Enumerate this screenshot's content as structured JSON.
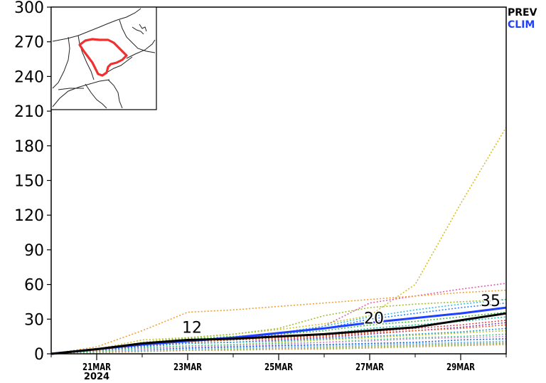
{
  "title": "",
  "chart_data": {
    "type": "line",
    "x": [
      "2024-03-20",
      "2024-03-21",
      "2024-03-22",
      "2024-03-23",
      "2024-03-24",
      "2024-03-25",
      "2024-03-26",
      "2024-03-27",
      "2024-03-28",
      "2024-03-29",
      "2024-03-30"
    ],
    "xlim": [
      "2024-03-20",
      "2024-03-30"
    ],
    "x_tick_labels": [
      {
        "date": "2024-03-21",
        "label": "21MAR",
        "sublabel": "2024"
      },
      {
        "date": "2024-03-23",
        "label": "23MAR",
        "sublabel": ""
      },
      {
        "date": "2024-03-25",
        "label": "25MAR",
        "sublabel": ""
      },
      {
        "date": "2024-03-27",
        "label": "27MAR",
        "sublabel": ""
      },
      {
        "date": "2024-03-29",
        "label": "29MAR",
        "sublabel": ""
      }
    ],
    "ylim": [
      0,
      300
    ],
    "yticks": [
      0,
      30,
      60,
      90,
      120,
      150,
      180,
      210,
      240,
      270,
      300
    ],
    "grid": false,
    "legend": {
      "position": "top-right",
      "items": [
        {
          "label": "PREV",
          "color": "#000000"
        },
        {
          "label": "CLIM",
          "color": "#2040ff"
        }
      ]
    },
    "series": [
      {
        "name": "PREV",
        "color": "#000000",
        "style": "solid",
        "values": [
          0,
          4,
          9,
          12,
          13,
          15,
          17,
          20,
          23,
          29,
          35
        ]
      },
      {
        "name": "CLIM",
        "color": "#2040ff",
        "style": "solid",
        "values": [
          0,
          4,
          8,
          11,
          14,
          18,
          22,
          27,
          31,
          35,
          40
        ]
      }
    ],
    "ensemble_members": [
      {
        "color": "#d4c020",
        "values": [
          0,
          4,
          12,
          14,
          17,
          21,
          26,
          33,
          60,
          130,
          196
        ]
      },
      {
        "color": "#e05fb0",
        "values": [
          0,
          3,
          8,
          11,
          13,
          16,
          24,
          44,
          50,
          56,
          61
        ]
      },
      {
        "color": "#f0a030",
        "values": [
          0,
          6,
          20,
          36,
          38,
          41,
          44,
          47,
          50,
          53,
          55
        ]
      },
      {
        "color": "#a0c030",
        "values": [
          0,
          3,
          10,
          14,
          17,
          22,
          33,
          40,
          43,
          45,
          47
        ]
      },
      {
        "color": "#30c0e0",
        "values": [
          0,
          3,
          9,
          12,
          14,
          18,
          24,
          32,
          38,
          43,
          47
        ]
      },
      {
        "color": "#3080ff",
        "values": [
          0,
          3,
          8,
          11,
          13,
          17,
          22,
          30,
          35,
          40,
          44
        ]
      },
      {
        "color": "#40c040",
        "values": [
          0,
          3,
          9,
          13,
          15,
          17,
          20,
          25,
          28,
          32,
          36
        ]
      },
      {
        "color": "#20c0a0",
        "values": [
          0,
          2,
          7,
          10,
          12,
          14,
          17,
          22,
          25,
          28,
          32
        ]
      },
      {
        "color": "#e04040",
        "values": [
          0,
          3,
          8,
          11,
          12,
          14,
          16,
          19,
          22,
          25,
          29
        ]
      },
      {
        "color": "#8040c0",
        "values": [
          0,
          2,
          7,
          9,
          10,
          12,
          14,
          17,
          20,
          23,
          27
        ]
      },
      {
        "color": "#f06020",
        "values": [
          0,
          3,
          8,
          10,
          12,
          13,
          15,
          18,
          20,
          22,
          25
        ]
      },
      {
        "color": "#20a0d0",
        "values": [
          0,
          2,
          6,
          9,
          10,
          11,
          13,
          15,
          17,
          19,
          22
        ]
      },
      {
        "color": "#c0c020",
        "values": [
          0,
          2,
          5,
          7,
          8,
          10,
          12,
          14,
          16,
          18,
          20
        ]
      },
      {
        "color": "#40d080",
        "values": [
          0,
          2,
          5,
          7,
          8,
          9,
          10,
          12,
          14,
          15,
          17
        ]
      },
      {
        "color": "#e080e0",
        "values": [
          0,
          1,
          4,
          6,
          7,
          8,
          10,
          11,
          13,
          14,
          15
        ]
      },
      {
        "color": "#2060c0",
        "values": [
          0,
          1,
          3,
          5,
          6,
          7,
          8,
          9,
          10,
          12,
          13
        ]
      },
      {
        "color": "#60c0ff",
        "values": [
          0,
          1,
          3,
          4,
          5,
          6,
          7,
          8,
          9,
          10,
          11
        ]
      },
      {
        "color": "#a0a0a0",
        "values": [
          0,
          1,
          2,
          3,
          4,
          5,
          6,
          7,
          8,
          9,
          10
        ]
      },
      {
        "color": "#80c040",
        "values": [
          0,
          1,
          2,
          3,
          4,
          4,
          5,
          6,
          7,
          8,
          9
        ]
      },
      {
        "color": "#d0a060",
        "values": [
          0,
          1,
          2,
          3,
          3,
          4,
          4,
          5,
          6,
          7,
          8
        ]
      }
    ],
    "annotations": [
      {
        "date": "2024-03-23",
        "text": "12",
        "value": 12
      },
      {
        "date": "2024-03-27",
        "text": "20",
        "value": 20
      },
      {
        "date": "2024-03-30",
        "text": "35",
        "value": 35
      }
    ],
    "inset_map": {
      "type": "region-locator-map",
      "highlight_color": "#ee3030"
    }
  }
}
